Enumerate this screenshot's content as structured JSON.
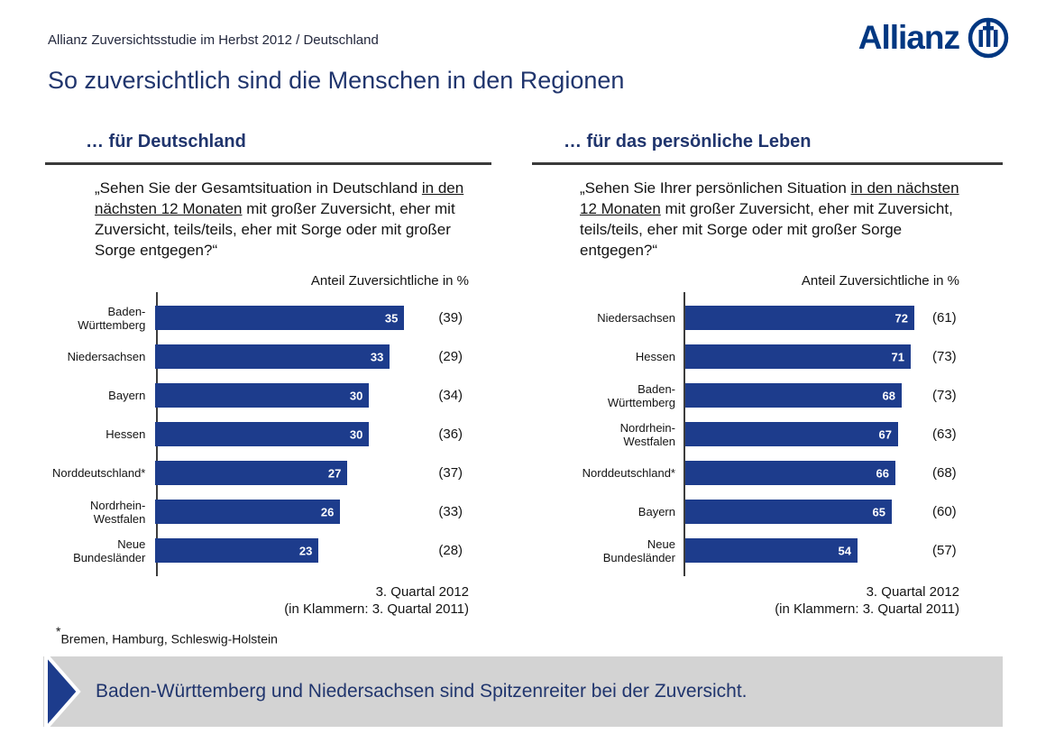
{
  "header": {
    "study_label": "Allianz Zuversichtsstudie im Herbst 2012 / Deutschland",
    "title": "So zuversichtlich sind die Menschen in den Regionen",
    "logo_text": "Allianz"
  },
  "charts": [
    {
      "header": "… für Deutschland",
      "question": {
        "before": "„Sehen Sie der Gesamtsituation in Deutschland ",
        "underlined": "in den nächsten 12 Monaten",
        "after": " mit großer Zuversicht, eher mit Zuversicht, teils/teils, eher mit Sorge oder mit großer Sorge entgegen?“"
      },
      "axis_label": "Anteil Zuversichtliche in %",
      "rows": [
        {
          "label_lines": [
            "Baden-",
            "Württemberg"
          ],
          "value": 35,
          "paren": "(39)"
        },
        {
          "label_lines": [
            "Niedersachsen"
          ],
          "value": 33,
          "paren": "(29)"
        },
        {
          "label_lines": [
            "Bayern"
          ],
          "value": 30,
          "paren": "(34)"
        },
        {
          "label_lines": [
            "Hessen"
          ],
          "value": 30,
          "paren": "(36)"
        },
        {
          "label_lines": [
            "Norddeutschland*"
          ],
          "value": 27,
          "paren": "(37)"
        },
        {
          "label_lines": [
            "Nordrhein-",
            "Westfalen"
          ],
          "value": 26,
          "paren": "(33)"
        },
        {
          "label_lines": [
            "Neue",
            "Bundesländer"
          ],
          "value": 23,
          "paren": "(28)"
        }
      ],
      "footer_line1": "3. Quartal 2012",
      "footer_line2": "(in Klammern: 3. Quartal 2011)"
    },
    {
      "header": "… für das persönliche Leben",
      "question": {
        "before": "„Sehen Sie Ihrer persönlichen Situation ",
        "underlined": "in den nächsten 12 Monaten",
        "after": " mit großer Zuversicht, eher mit Zuversicht, teils/teils, eher mit Sorge oder mit großer Sorge entgegen?“"
      },
      "axis_label": "Anteil Zuversichtliche in %",
      "rows": [
        {
          "label_lines": [
            "Niedersachsen"
          ],
          "value": 72,
          "paren": "(61)"
        },
        {
          "label_lines": [
            "Hessen"
          ],
          "value": 71,
          "paren": "(73)"
        },
        {
          "label_lines": [
            "Baden-",
            "Württemberg"
          ],
          "value": 68,
          "paren": "(73)"
        },
        {
          "label_lines": [
            "Nordrhein-",
            "Westfalen"
          ],
          "value": 67,
          "paren": "(63)"
        },
        {
          "label_lines": [
            "Norddeutschland*"
          ],
          "value": 66,
          "paren": "(68)"
        },
        {
          "label_lines": [
            "Bayern"
          ],
          "value": 65,
          "paren": "(60)"
        },
        {
          "label_lines": [
            "Neue",
            "Bundesländer"
          ],
          "value": 54,
          "paren": "(57)"
        }
      ],
      "footer_line1": "3. Quartal 2012",
      "footer_line2": "(in Klammern: 3. Quartal 2011)"
    }
  ],
  "footnote": {
    "asterisk": "*",
    "text": "Bremen, Hamburg, Schleswig-Holstein"
  },
  "banner": {
    "text": "Baden-Württemberg und Niedersachsen sind Spitzenreiter bei der Zuversicht."
  },
  "colors": {
    "brand_blue": "#003781",
    "bar_blue": "#1d3c8c",
    "banner_gray": "#d3d3d3"
  },
  "chart_data": [
    {
      "type": "bar",
      "orientation": "horizontal",
      "title": "… für Deutschland",
      "subtitle": "Anteil Zuversichtliche in %",
      "categories": [
        "Baden-Württemberg",
        "Niedersachsen",
        "Bayern",
        "Hessen",
        "Norddeutschland*",
        "Nordrhein-Westfalen",
        "Neue Bundesländer"
      ],
      "series": [
        {
          "name": "3. Quartal 2012",
          "values": [
            35,
            33,
            30,
            30,
            27,
            26,
            23
          ]
        },
        {
          "name": "3. Quartal 2011 (in Klammern)",
          "values": [
            39,
            29,
            34,
            36,
            37,
            33,
            28
          ]
        }
      ],
      "xlabel": "Anteil Zuversichtliche in %",
      "ylabel": "",
      "xlim": [
        0,
        40
      ],
      "grid": false,
      "legend_position": "none",
      "annotations": [
        "3. Quartal 2012",
        "(in Klammern: 3. Quartal 2011)"
      ]
    },
    {
      "type": "bar",
      "orientation": "horizontal",
      "title": "… für das persönliche Leben",
      "subtitle": "Anteil Zuversichtliche in %",
      "categories": [
        "Niedersachsen",
        "Hessen",
        "Baden-Württemberg",
        "Nordrhein-Westfalen",
        "Norddeutschland*",
        "Bayern",
        "Neue Bundesländer"
      ],
      "series": [
        {
          "name": "3. Quartal 2012",
          "values": [
            72,
            71,
            68,
            67,
            66,
            65,
            54
          ]
        },
        {
          "name": "3. Quartal 2011 (in Klammern)",
          "values": [
            61,
            73,
            73,
            63,
            68,
            60,
            57
          ]
        }
      ],
      "xlabel": "Anteil Zuversichtliche in %",
      "ylabel": "",
      "xlim": [
        0,
        80
      ],
      "grid": false,
      "legend_position": "none",
      "annotations": [
        "3. Quartal 2012",
        "(in Klammern: 3. Quartal 2011)"
      ]
    }
  ]
}
